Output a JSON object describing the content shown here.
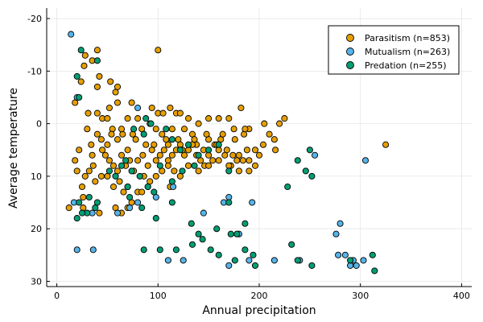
{
  "chart_data": {
    "type": "scatter",
    "xlabel": "Annual precipitation",
    "ylabel": "Average temperature",
    "xlim": [
      -10,
      410
    ],
    "ylim": [
      -22,
      31
    ],
    "y_inverted": true,
    "xticks": [
      0,
      100,
      200,
      300,
      400
    ],
    "yticks": [
      -20,
      -10,
      0,
      10,
      20,
      30
    ],
    "grid": true,
    "legend_position": "top-right",
    "series": [
      {
        "name": "Parasitism (n=853)",
        "color": "#E69F00",
        "points": [
          [
            28,
            -13
          ],
          [
            40,
            -14
          ],
          [
            35,
            -12
          ],
          [
            27,
            -11
          ],
          [
            100,
            -14
          ],
          [
            18,
            -4
          ],
          [
            42,
            -9
          ],
          [
            24,
            -8
          ],
          [
            40,
            -7
          ],
          [
            53,
            -8
          ],
          [
            60,
            -7
          ],
          [
            58,
            -6
          ],
          [
            60,
            -4
          ],
          [
            74,
            -4
          ],
          [
            52,
            -3
          ],
          [
            40,
            -2
          ],
          [
            45,
            -1
          ],
          [
            31,
            -2
          ],
          [
            50,
            -1
          ],
          [
            70,
            -1
          ],
          [
            80,
            -1
          ],
          [
            94,
            -3
          ],
          [
            100,
            -2
          ],
          [
            105,
            -2
          ],
          [
            112,
            -3
          ],
          [
            118,
            -2
          ],
          [
            122,
            -2
          ],
          [
            130,
            -1
          ],
          [
            140,
            0
          ],
          [
            150,
            -1
          ],
          [
            160,
            -1
          ],
          [
            170,
            -1
          ],
          [
            182,
            -3
          ],
          [
            175,
            1
          ],
          [
            185,
            2
          ],
          [
            190,
            1
          ],
          [
            205,
            0
          ],
          [
            210,
            2
          ],
          [
            220,
            0
          ],
          [
            225,
            -1
          ],
          [
            30,
            1
          ],
          [
            34,
            4
          ],
          [
            40,
            2
          ],
          [
            45,
            5
          ],
          [
            50,
            4
          ],
          [
            55,
            1
          ],
          [
            60,
            3
          ],
          [
            65,
            2
          ],
          [
            70,
            5
          ],
          [
            75,
            2
          ],
          [
            84,
            1
          ],
          [
            88,
            4
          ],
          [
            92,
            0
          ],
          [
            98,
            1
          ],
          [
            104,
            2
          ],
          [
            110,
            4
          ],
          [
            114,
            1
          ],
          [
            120,
            3
          ],
          [
            126,
            1
          ],
          [
            134,
            2
          ],
          [
            138,
            4
          ],
          [
            145,
            5
          ],
          [
            150,
            3
          ],
          [
            156,
            4
          ],
          [
            162,
            3
          ],
          [
            168,
            5
          ],
          [
            174,
            6
          ],
          [
            180,
            6
          ],
          [
            188,
            5
          ],
          [
            196,
            5
          ],
          [
            215,
            3
          ],
          [
            216,
            5
          ],
          [
            48,
            6
          ],
          [
            52,
            7
          ],
          [
            56,
            8
          ],
          [
            60,
            9
          ],
          [
            64,
            6
          ],
          [
            68,
            8
          ],
          [
            72,
            7
          ],
          [
            76,
            9
          ],
          [
            80,
            7
          ],
          [
            85,
            6
          ],
          [
            90,
            8
          ],
          [
            94,
            5
          ],
          [
            98,
            7
          ],
          [
            102,
            6
          ],
          [
            106,
            5
          ],
          [
            110,
            7
          ],
          [
            114,
            6
          ],
          [
            118,
            5
          ],
          [
            122,
            4
          ],
          [
            126,
            6
          ],
          [
            130,
            5
          ],
          [
            134,
            4
          ],
          [
            138,
            6
          ],
          [
            142,
            7
          ],
          [
            146,
            8
          ],
          [
            150,
            6
          ],
          [
            154,
            7
          ],
          [
            160,
            5
          ],
          [
            166,
            6
          ],
          [
            172,
            8
          ],
          [
            178,
            7
          ],
          [
            184,
            7
          ],
          [
            190,
            9
          ],
          [
            196,
            8
          ],
          [
            200,
            6
          ],
          [
            36,
            8
          ],
          [
            32,
            9
          ],
          [
            28,
            10
          ],
          [
            25,
            12
          ],
          [
            38,
            11
          ],
          [
            44,
            10
          ],
          [
            50,
            10
          ],
          [
            56,
            12
          ],
          [
            62,
            11
          ],
          [
            66,
            13
          ],
          [
            70,
            12
          ],
          [
            74,
            15
          ],
          [
            80,
            13
          ],
          [
            86,
            10
          ],
          [
            92,
            11
          ],
          [
            98,
            10
          ],
          [
            104,
            9
          ],
          [
            110,
            8
          ],
          [
            116,
            9
          ],
          [
            122,
            10
          ],
          [
            130,
            8
          ],
          [
            140,
            9
          ],
          [
            150,
            8
          ],
          [
            160,
            7
          ],
          [
            170,
            8
          ],
          [
            180,
            9
          ],
          [
            190,
            7
          ],
          [
            204,
            4
          ],
          [
            12,
            16
          ],
          [
            26,
            16
          ],
          [
            42,
            17
          ],
          [
            58,
            16
          ],
          [
            70,
            16
          ],
          [
            84,
            13
          ],
          [
            112,
            12
          ],
          [
            20,
            9
          ],
          [
            18,
            7
          ],
          [
            26,
            14
          ],
          [
            64,
            17
          ],
          [
            325,
            4
          ],
          [
            35,
            6
          ],
          [
            44,
            3
          ],
          [
            54,
            2
          ],
          [
            64,
            1
          ],
          [
            78,
            3
          ],
          [
            96,
            4
          ],
          [
            108,
            3
          ],
          [
            124,
            5
          ],
          [
            136,
            3
          ],
          [
            148,
            2
          ],
          [
            158,
            4
          ],
          [
            164,
            2
          ],
          [
            176,
            3
          ],
          [
            186,
            1
          ],
          [
            22,
            5
          ]
        ]
      },
      {
        "name": "Mutualism (n=263)",
        "color": "#56B4E9",
        "points": [
          [
            14,
            -17
          ],
          [
            20,
            -5
          ],
          [
            80,
            -3
          ],
          [
            255,
            6
          ],
          [
            305,
            7
          ],
          [
            20,
            24
          ],
          [
            36,
            24
          ],
          [
            35,
            17
          ],
          [
            17,
            15
          ],
          [
            60,
            17
          ],
          [
            72,
            16
          ],
          [
            80,
            15
          ],
          [
            90,
            12
          ],
          [
            145,
            17
          ],
          [
            165,
            15
          ],
          [
            193,
            15
          ],
          [
            280,
            19
          ],
          [
            276,
            21
          ],
          [
            110,
            26
          ],
          [
            125,
            26
          ],
          [
            170,
            27
          ],
          [
            190,
            26
          ],
          [
            215,
            26
          ],
          [
            240,
            26
          ],
          [
            278,
            25
          ],
          [
            285,
            25
          ],
          [
            293,
            26
          ],
          [
            303,
            26
          ],
          [
            290,
            27
          ],
          [
            296,
            27
          ],
          [
            180,
            21
          ],
          [
            170,
            14
          ],
          [
            115,
            12
          ],
          [
            98,
            14
          ]
        ]
      },
      {
        "name": "Predation (n=255)",
        "color": "#009E73",
        "points": [
          [
            24,
            -14
          ],
          [
            40,
            -12
          ],
          [
            20,
            -9
          ],
          [
            22,
            -5
          ],
          [
            88,
            -1
          ],
          [
            93,
            0
          ],
          [
            76,
            1
          ],
          [
            86,
            2
          ],
          [
            108,
            1
          ],
          [
            114,
            3
          ],
          [
            122,
            5
          ],
          [
            130,
            4
          ],
          [
            140,
            6
          ],
          [
            150,
            5
          ],
          [
            160,
            4
          ],
          [
            170,
            9
          ],
          [
            68,
            7
          ],
          [
            74,
            9
          ],
          [
            82,
            10
          ],
          [
            90,
            12
          ],
          [
            102,
            8
          ],
          [
            114,
            11
          ],
          [
            124,
            9
          ],
          [
            136,
            8
          ],
          [
            70,
            12
          ],
          [
            72,
            14
          ],
          [
            84,
            16
          ],
          [
            98,
            18
          ],
          [
            114,
            15
          ],
          [
            133,
            19
          ],
          [
            140,
            21
          ],
          [
            158,
            20
          ],
          [
            170,
            15
          ],
          [
            186,
            19
          ],
          [
            228,
            12
          ],
          [
            238,
            7
          ],
          [
            246,
            9
          ],
          [
            250,
            5
          ],
          [
            252,
            10
          ],
          [
            22,
            15
          ],
          [
            32,
            14
          ],
          [
            40,
            15
          ],
          [
            30,
            17
          ],
          [
            25,
            17
          ],
          [
            20,
            18
          ],
          [
            38,
            16
          ],
          [
            86,
            24
          ],
          [
            102,
            24
          ],
          [
            118,
            24
          ],
          [
            134,
            23
          ],
          [
            144,
            22
          ],
          [
            152,
            24
          ],
          [
            160,
            25
          ],
          [
            172,
            21
          ],
          [
            178,
            21
          ],
          [
            186,
            24
          ],
          [
            194,
            25
          ],
          [
            176,
            26
          ],
          [
            196,
            27
          ],
          [
            232,
            23
          ],
          [
            238,
            26
          ],
          [
            252,
            27
          ],
          [
            312,
            25
          ],
          [
            314,
            28
          ],
          [
            290,
            26
          ],
          [
            52,
            9
          ],
          [
            58,
            10
          ],
          [
            64,
            8
          ],
          [
            96,
            13
          ]
        ]
      }
    ]
  }
}
